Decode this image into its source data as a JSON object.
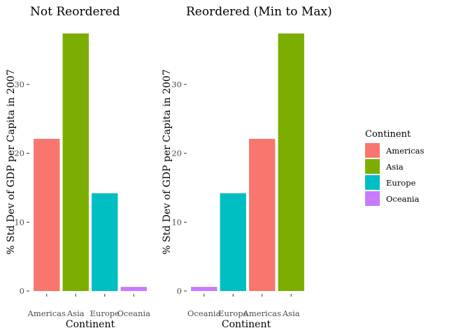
{
  "chart_data": [
    {
      "type": "bar",
      "title": "Not Reordered",
      "xlabel": "Continent",
      "ylabel": "% Std Dev of GDP per Capita in 2007",
      "categories": [
        "Americas",
        "Asia",
        "Europe",
        "Oceania"
      ],
      "values": [
        22.1,
        37.4,
        14.2,
        0.6
      ],
      "ylim": [
        0,
        37.4
      ],
      "yticks": [
        0,
        10,
        20,
        30
      ],
      "grid": false
    },
    {
      "type": "bar",
      "title": "Reordered (Min to Max)",
      "xlabel": "Continent",
      "ylabel": "% Std Dev of GDP per Capita in 2007",
      "categories": [
        "Oceania",
        "Europe",
        "Americas",
        "Asia"
      ],
      "values": [
        0.6,
        14.2,
        22.1,
        37.4
      ],
      "ylim": [
        0,
        37.4
      ],
      "yticks": [
        0,
        10,
        20,
        30
      ],
      "grid": false
    }
  ],
  "legend": {
    "title": "Continent",
    "position": "right",
    "items": [
      {
        "label": "Americas",
        "color": "#F8766D"
      },
      {
        "label": "Asia",
        "color": "#7CAE00"
      },
      {
        "label": "Europe",
        "color": "#00BFC4"
      },
      {
        "label": "Oceania",
        "color": "#C77CFF"
      }
    ]
  }
}
